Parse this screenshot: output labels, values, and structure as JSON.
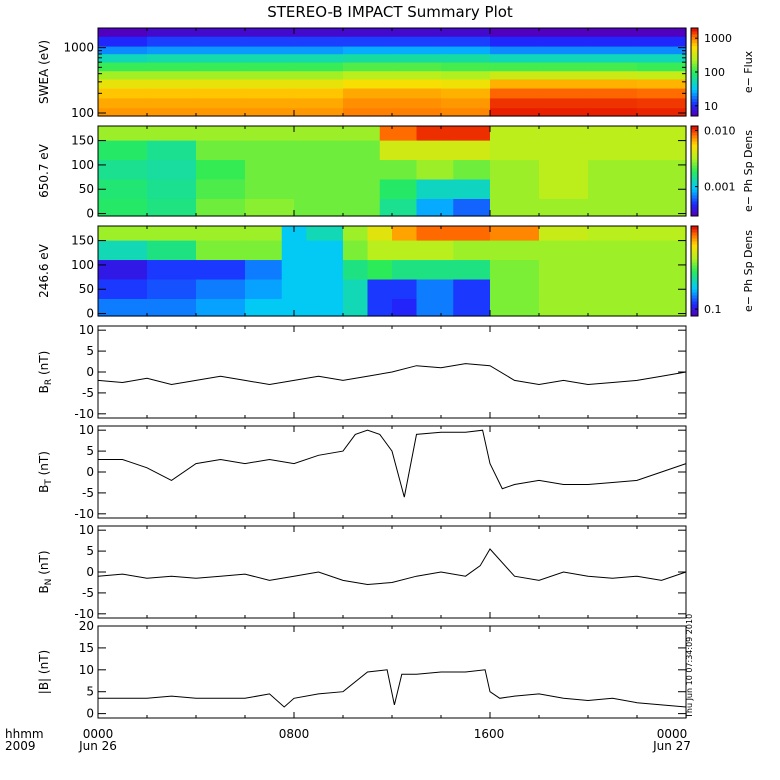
{
  "title": "STEREO-B IMPACT Summary Plot",
  "stamp": "Thu Jun 10 07:34:09 2010",
  "time_axis": {
    "row1": [
      "0000",
      "0800",
      "1600",
      "0000"
    ],
    "row2": [
      "Jun 26",
      "Jun 27"
    ],
    "label1": "hhmm",
    "label2": "2009"
  },
  "chart_data": [
    {
      "type": "heatmap",
      "name": "swea",
      "ylabel": "SWEA (eV)",
      "yscale": "log",
      "ylim": [
        90,
        2000
      ],
      "yticks": [
        100,
        1000
      ],
      "yticklabels": [
        "100",
        "1000"
      ],
      "colorbar": {
        "label": "e−  Flux",
        "scale": "log",
        "ticks": [
          "10",
          "100",
          "1000"
        ],
        "range": [
          5,
          2000
        ]
      },
      "energy_rows": [
        {
          "eV": 1800,
          "flux": [
            5,
            6,
            6,
            6,
            6,
            6,
            6,
            6,
            5,
            5,
            5,
            5
          ]
        },
        {
          "eV": 1200,
          "flux": [
            10,
            12,
            12,
            12,
            12,
            12,
            12,
            12,
            10,
            10,
            10,
            10
          ]
        },
        {
          "eV": 900,
          "flux": [
            20,
            22,
            22,
            22,
            22,
            25,
            25,
            25,
            20,
            20,
            20,
            20
          ]
        },
        {
          "eV": 700,
          "flux": [
            50,
            55,
            55,
            55,
            55,
            60,
            60,
            60,
            50,
            50,
            50,
            50
          ]
        },
        {
          "eV": 500,
          "flux": [
            110,
            110,
            110,
            110,
            110,
            130,
            130,
            120,
            120,
            120,
            120,
            110
          ]
        },
        {
          "eV": 380,
          "flux": [
            220,
            220,
            220,
            220,
            220,
            260,
            260,
            240,
            320,
            320,
            320,
            300
          ]
        },
        {
          "eV": 280,
          "flux": [
            450,
            450,
            450,
            450,
            450,
            550,
            550,
            500,
            800,
            800,
            800,
            780
          ]
        },
        {
          "eV": 200,
          "flux": [
            700,
            700,
            700,
            700,
            700,
            850,
            850,
            800,
            1300,
            1300,
            1300,
            1250
          ]
        },
        {
          "eV": 140,
          "flux": [
            850,
            850,
            850,
            850,
            850,
            1000,
            1000,
            950,
            1700,
            1700,
            1700,
            1650
          ]
        },
        {
          "eV": 100,
          "flux": [
            950,
            950,
            950,
            950,
            950,
            1100,
            1100,
            1050,
            1900,
            1900,
            1900,
            1850
          ]
        }
      ]
    },
    {
      "type": "heatmap",
      "name": "pad650",
      "ylabel": "650.7 eV",
      "ylim": [
        -5,
        180
      ],
      "yticks": [
        0,
        50,
        100,
        150
      ],
      "colorbar": {
        "label": "e−  Ph Sp Dens",
        "scale": "log",
        "ticks": [
          "0.001",
          "0.010"
        ],
        "range": [
          0.0003,
          0.012
        ]
      },
      "time_hours": [
        0,
        2,
        4,
        6,
        8,
        10,
        11.5,
        13,
        14.5,
        16,
        18,
        20,
        22,
        24
      ],
      "pitch_rows": [
        {
          "deg": 170,
          "value": [
            0.003,
            0.003,
            0.003,
            0.003,
            0.003,
            0.003,
            0.009,
            0.011,
            0.011,
            0.0035,
            0.0035,
            0.0035,
            0.0035,
            0.0035
          ]
        },
        {
          "deg": 130,
          "value": [
            0.0018,
            0.0015,
            0.0025,
            0.0025,
            0.0025,
            0.0025,
            0.004,
            0.004,
            0.004,
            0.0035,
            0.0035,
            0.0035,
            0.0035,
            0.0035
          ]
        },
        {
          "deg": 90,
          "value": [
            0.0015,
            0.0014,
            0.002,
            0.0025,
            0.0025,
            0.0025,
            0.0025,
            0.003,
            0.0025,
            0.003,
            0.0035,
            0.003,
            0.003,
            0.003
          ]
        },
        {
          "deg": 50,
          "value": [
            0.0017,
            0.0015,
            0.0022,
            0.0025,
            0.0025,
            0.0025,
            0.0018,
            0.0012,
            0.0012,
            0.003,
            0.0035,
            0.003,
            0.003,
            0.003
          ]
        },
        {
          "deg": 10,
          "value": [
            0.0018,
            0.0016,
            0.0025,
            0.0028,
            0.0025,
            0.0025,
            0.0015,
            0.0008,
            0.0006,
            0.003,
            0.003,
            0.003,
            0.003,
            0.003
          ]
        }
      ]
    },
    {
      "type": "heatmap",
      "name": "pad246",
      "ylabel": "246.6 eV",
      "ylim": [
        -5,
        180
      ],
      "yticks": [
        0,
        50,
        100,
        150
      ],
      "colorbar": {
        "label": "e−  Ph Sp Dens",
        "scale": "log",
        "ticks": [
          "0.1"
        ],
        "range": [
          0.08,
          1.5
        ]
      },
      "time_hours": [
        0,
        2,
        4,
        6,
        7.5,
        8.5,
        10,
        11,
        12,
        13,
        14.5,
        16,
        18,
        20,
        22,
        24
      ],
      "pitch_rows": [
        {
          "deg": 170,
          "value": [
            0.5,
            0.5,
            0.5,
            0.5,
            0.2,
            0.25,
            0.5,
            0.7,
            1.0,
            1.2,
            1.2,
            1.1,
            0.6,
            0.55,
            0.55,
            0.55
          ]
        },
        {
          "deg": 130,
          "value": [
            0.25,
            0.3,
            0.45,
            0.45,
            0.2,
            0.2,
            0.45,
            0.55,
            0.55,
            0.55,
            0.5,
            0.5,
            0.5,
            0.5,
            0.5,
            0.5
          ]
        },
        {
          "deg": 90,
          "value": [
            0.1,
            0.12,
            0.12,
            0.15,
            0.2,
            0.2,
            0.3,
            0.35,
            0.3,
            0.3,
            0.3,
            0.45,
            0.5,
            0.5,
            0.5,
            0.5
          ]
        },
        {
          "deg": 50,
          "value": [
            0.12,
            0.13,
            0.15,
            0.17,
            0.2,
            0.2,
            0.25,
            0.12,
            0.12,
            0.15,
            0.12,
            0.45,
            0.5,
            0.5,
            0.5,
            0.5
          ]
        },
        {
          "deg": 10,
          "value": [
            0.15,
            0.15,
            0.17,
            0.2,
            0.2,
            0.2,
            0.25,
            0.12,
            0.11,
            0.15,
            0.12,
            0.45,
            0.5,
            0.5,
            0.5,
            0.5
          ]
        }
      ]
    },
    {
      "type": "line",
      "name": "br",
      "ylabel": "B_R (nT)",
      "ylabel_main": "B",
      "ylabel_sub": "R",
      "ylabel_unit": " (nT)",
      "ylim": [
        -11,
        11
      ],
      "yticks": [
        -10,
        -5,
        0,
        5,
        10
      ],
      "x": [
        0,
        1,
        2,
        3,
        4,
        5,
        6,
        7,
        8,
        9,
        10,
        11,
        12,
        13,
        14,
        15,
        16,
        17,
        18,
        19,
        20,
        21,
        22,
        23,
        24
      ],
      "y": [
        -2,
        -2.5,
        -1.5,
        -3,
        -2,
        -1,
        -2,
        -3,
        -2,
        -1,
        -2,
        -1,
        0,
        1.5,
        1,
        2,
        1.5,
        -2,
        -3,
        -2,
        -3,
        -2.5,
        -2,
        -1,
        0
      ]
    },
    {
      "type": "line",
      "name": "bt",
      "ylabel": "B_T (nT)",
      "ylabel_main": "B",
      "ylabel_sub": "T",
      "ylabel_unit": " (nT)",
      "ylim": [
        -11,
        11
      ],
      "yticks": [
        -10,
        -5,
        0,
        5,
        10
      ],
      "x": [
        0,
        1,
        2,
        3,
        4,
        5,
        6,
        7,
        8,
        9,
        10,
        10.5,
        11,
        11.5,
        12,
        12.5,
        13,
        14,
        15,
        15.7,
        16,
        16.5,
        17,
        18,
        19,
        20,
        21,
        22,
        23,
        24
      ],
      "y": [
        3,
        3,
        1,
        -2,
        2,
        3,
        2,
        3,
        2,
        4,
        5,
        9,
        10,
        9,
        5,
        -6,
        9,
        9.5,
        9.5,
        10,
        2,
        -4,
        -3,
        -2,
        -3,
        -3,
        -2.5,
        -2,
        0,
        2
      ]
    },
    {
      "type": "line",
      "name": "bn",
      "ylabel": "B_N (nT)",
      "ylabel_main": "B",
      "ylabel_sub": "N",
      "ylabel_unit": " (nT)",
      "ylim": [
        -11,
        11
      ],
      "yticks": [
        -10,
        -5,
        0,
        5,
        10
      ],
      "x": [
        0,
        1,
        2,
        3,
        4,
        5,
        6,
        7,
        8,
        9,
        10,
        11,
        12,
        13,
        14,
        15,
        15.6,
        16,
        17,
        18,
        19,
        20,
        21,
        22,
        23,
        24
      ],
      "y": [
        -1,
        -0.5,
        -1.5,
        -1,
        -1.5,
        -1,
        -0.5,
        -2,
        -1,
        0,
        -2,
        -3,
        -2.5,
        -1,
        0,
        -1,
        1.5,
        5.5,
        -1,
        -2,
        0,
        -1,
        -1.5,
        -1,
        -2,
        0
      ]
    },
    {
      "type": "line",
      "name": "bmag",
      "ylabel": "|B| (nT)",
      "ylim": [
        -1,
        20
      ],
      "yticks": [
        0,
        5,
        10,
        15,
        20
      ],
      "x": [
        0,
        1,
        2,
        3,
        4,
        5,
        6,
        7,
        7.6,
        8,
        9,
        10,
        11,
        11.8,
        12.1,
        12.4,
        13,
        14,
        15,
        15.8,
        16,
        16.4,
        17,
        18,
        19,
        20,
        21,
        22,
        23,
        24
      ],
      "y": [
        3.5,
        3.5,
        3.5,
        4,
        3.5,
        3.5,
        3.5,
        4.5,
        1.5,
        3.5,
        4.5,
        5,
        9.5,
        10,
        2,
        9,
        9,
        9.5,
        9.5,
        10,
        5,
        3.5,
        4,
        4.5,
        3.5,
        3,
        3.5,
        2.5,
        2,
        1.5
      ]
    }
  ]
}
